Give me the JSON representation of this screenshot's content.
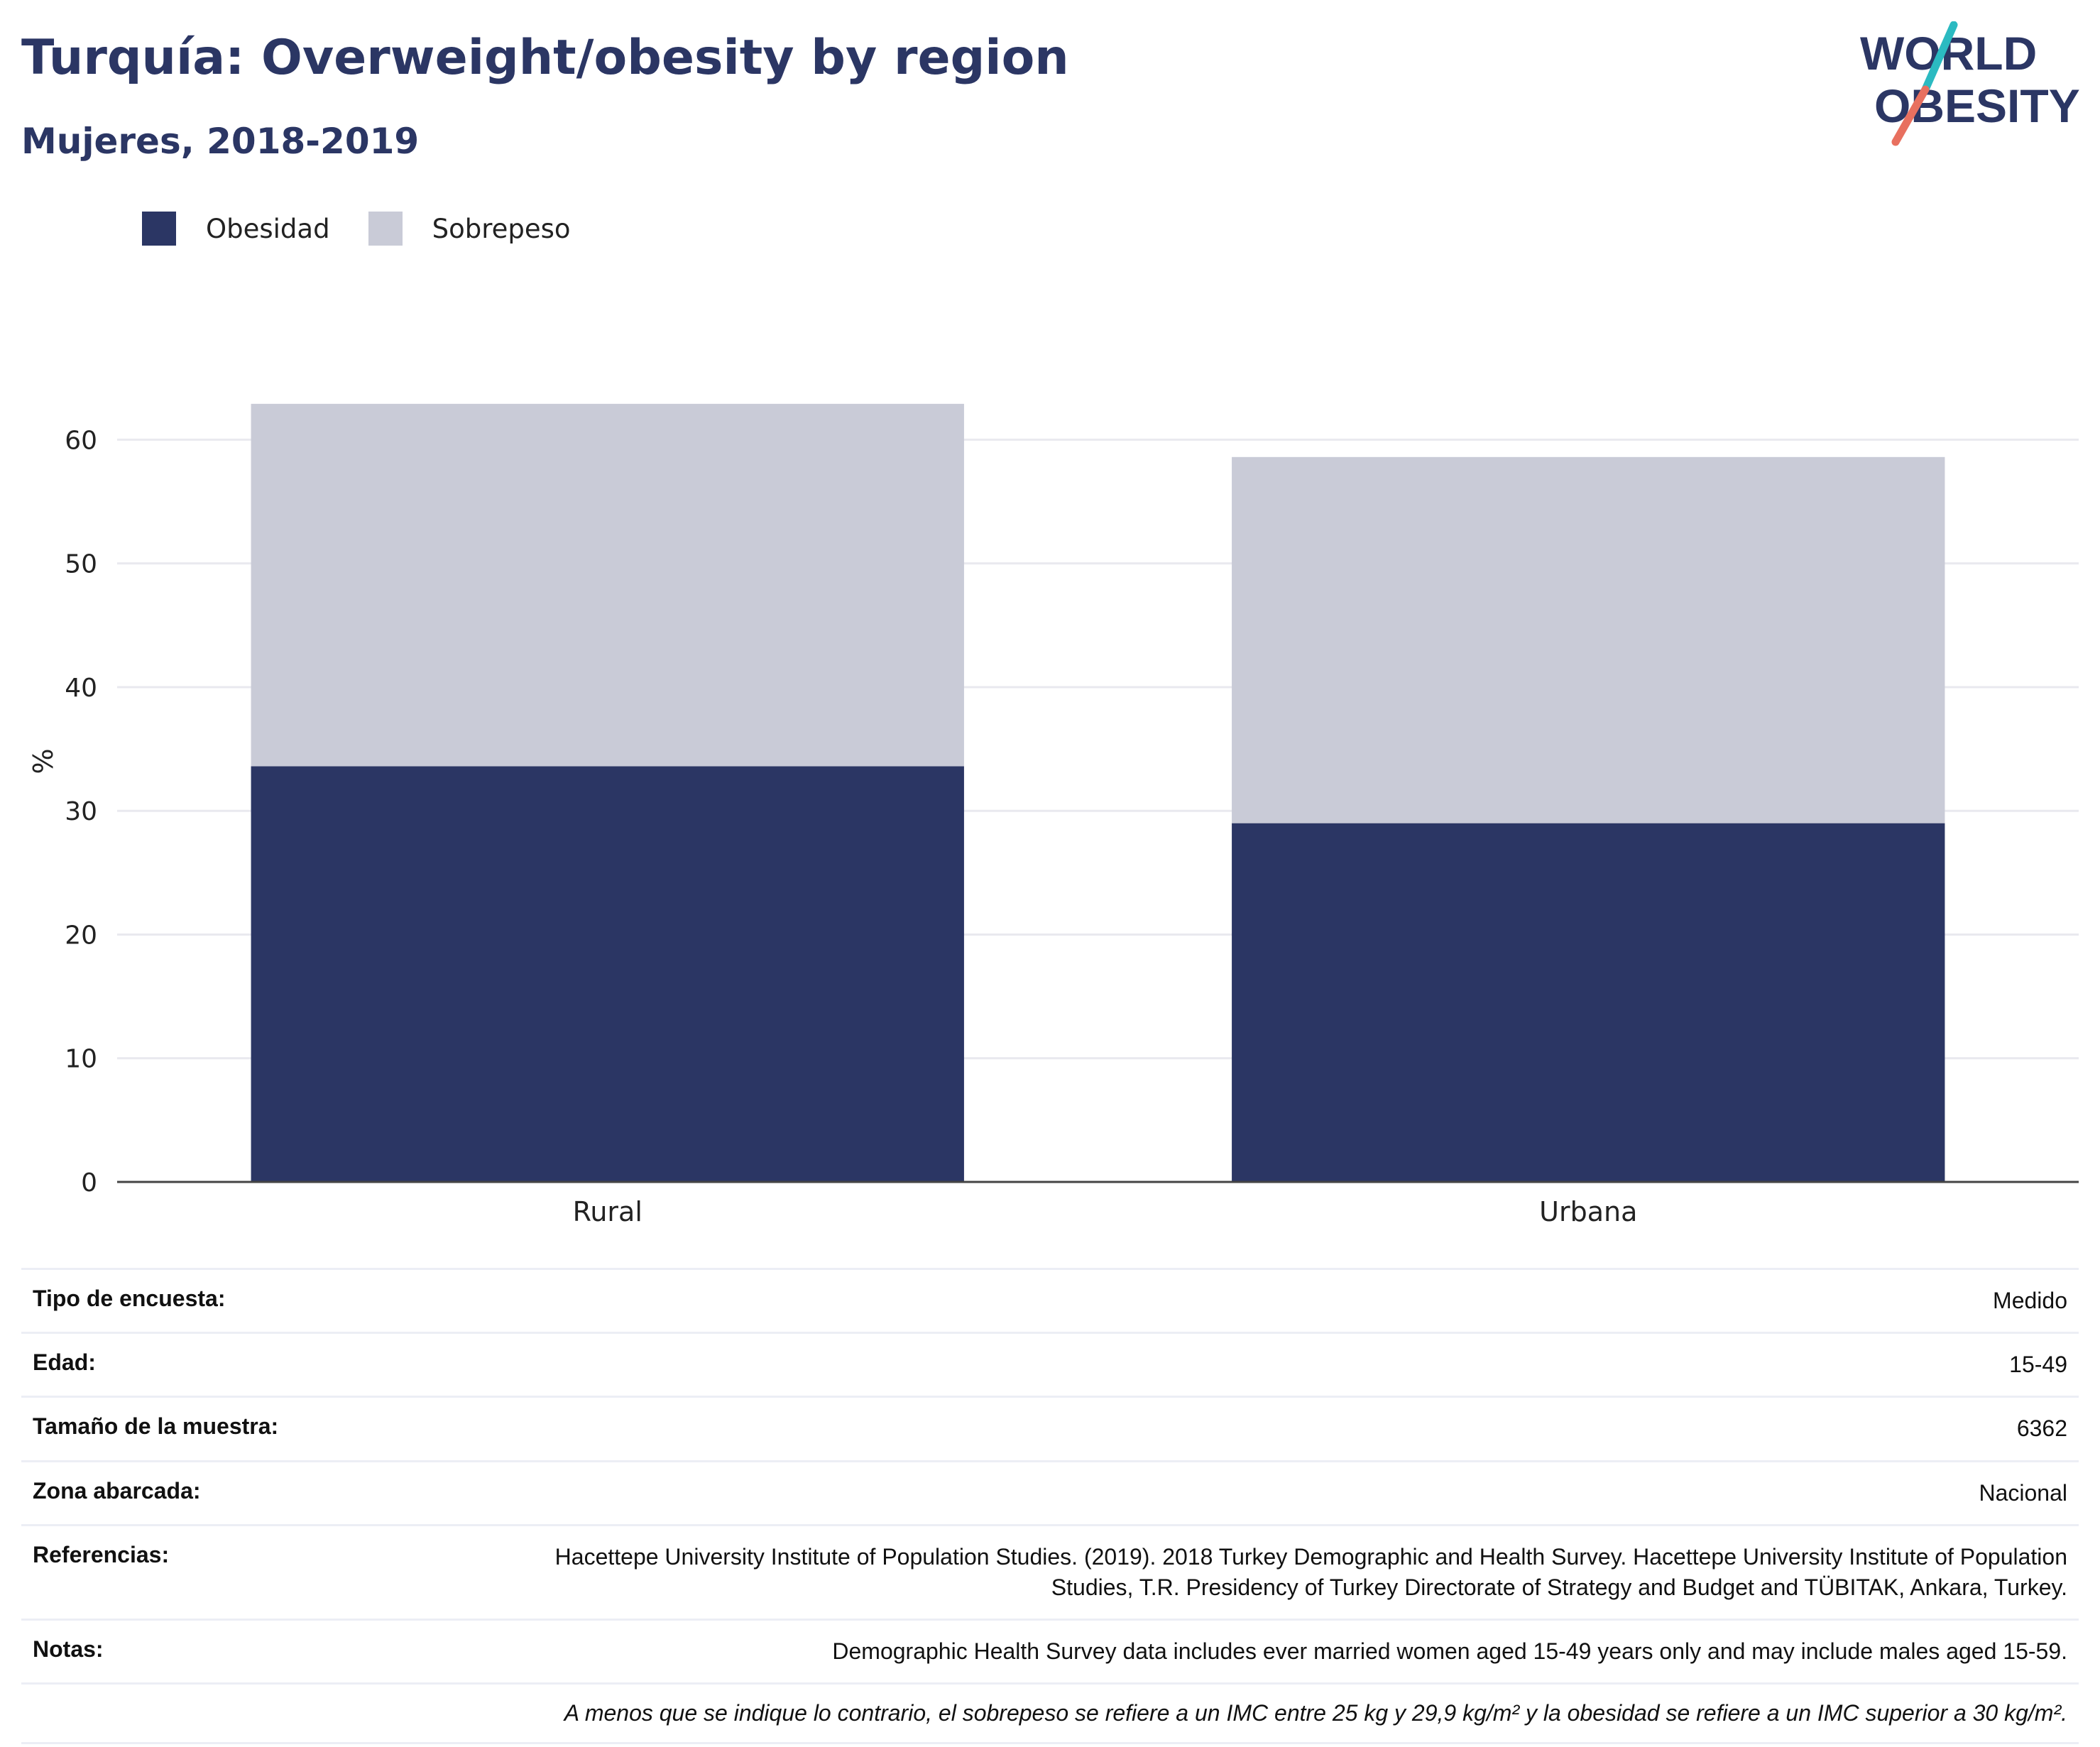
{
  "header": {
    "title": "Turquía: Overweight/obesity by region",
    "subtitle": "Mujeres, 2018-2019"
  },
  "logo": {
    "line1": "WORLD",
    "line2": "OBESITY",
    "colors": {
      "text": "#2b3664",
      "slash_top": "#2bbac1",
      "slash_bottom": "#e8705f"
    }
  },
  "colors": {
    "obesity": "#2b3664",
    "overweight": "#c9cbd7",
    "grid": "#e9e9ef",
    "axis": "#444444"
  },
  "chart_data": {
    "type": "bar",
    "stacked": true,
    "categories": [
      "Rural",
      "Urbana"
    ],
    "series": [
      {
        "name": "Obesidad",
        "values": [
          33.6,
          29.0
        ],
        "color": "#2b3664"
      },
      {
        "name": "Sobrepeso",
        "values": [
          29.3,
          29.6
        ],
        "color": "#c9cbd7"
      }
    ],
    "ylabel": "%",
    "ylim": [
      0,
      68
    ],
    "yticks": [
      0,
      10,
      20,
      30,
      40,
      50,
      60
    ],
    "grid": true,
    "legend": "top-left"
  },
  "info": {
    "rows": [
      {
        "label": "Tipo de encuesta:",
        "value": "Medido"
      },
      {
        "label": "Edad:",
        "value": "15-49"
      },
      {
        "label": "Tamaño de la muestra:",
        "value": "6362"
      },
      {
        "label": "Zona abarcada:",
        "value": "Nacional"
      },
      {
        "label": "Referencias:",
        "value": "Hacettepe University Institute of Population Studies. (2019). 2018 Turkey Demographic and Health Survey. Hacettepe University Institute of Population Studies, T.R. Presidency of Turkey Directorate of Strategy and Budget and TÜBITAK, Ankara, Turkey."
      },
      {
        "label": "Notas:",
        "value": "Demographic Health Survey data includes ever married women aged 15-49 years only and may include males aged 15-59."
      }
    ],
    "footnote": "A menos que se indique lo contrario, el sobrepeso se refiere a un IMC entre 25 kg y 29,9 kg/m² y la obesidad se refiere a un IMC superior a 30 kg/m²."
  }
}
